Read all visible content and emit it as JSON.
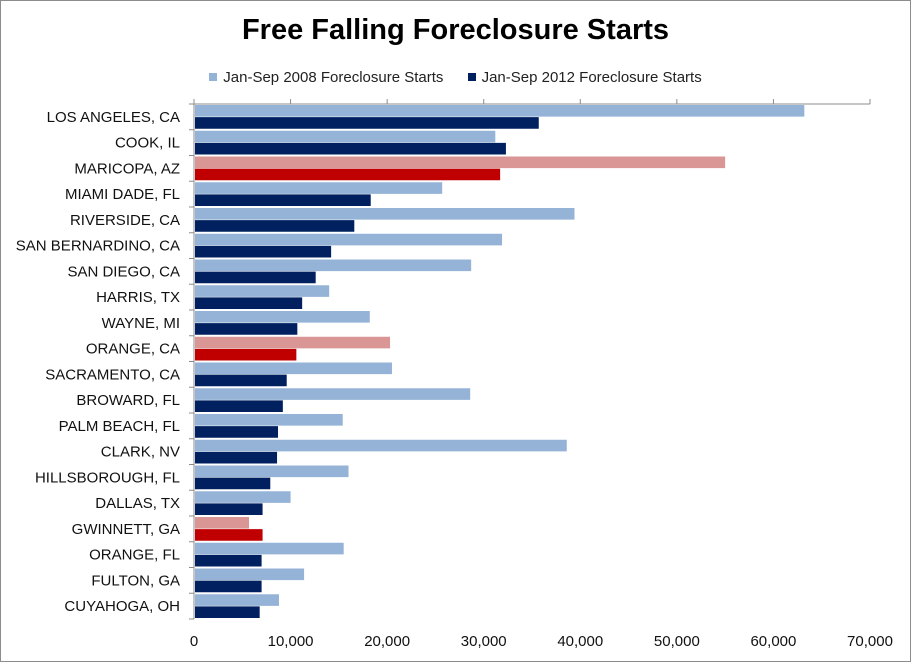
{
  "chart_data": {
    "type": "bar",
    "orientation": "horizontal",
    "title": "Free Falling Foreclosure Starts",
    "categories": [
      "LOS ANGELES, CA",
      "COOK, IL",
      "MARICOPA, AZ",
      "MIAMI DADE, FL",
      "RIVERSIDE, CA",
      "SAN BERNARDINO, CA",
      "SAN DIEGO, CA",
      "HARRIS, TX",
      "WAYNE, MI",
      "ORANGE, CA",
      "SACRAMENTO, CA",
      "BROWARD, FL",
      "PALM BEACH, FL",
      "CLARK, NV",
      "HILLSBOROUGH, FL",
      "DALLAS, TX",
      "GWINNETT, GA",
      "ORANGE, FL",
      "FULTON, GA",
      "CUYAHOGA, OH"
    ],
    "series": [
      {
        "name": "Jan-Sep 2008 Foreclosure Starts",
        "color": "#95b3d7",
        "highlight_color": "#d99694",
        "values": [
          63200,
          31200,
          55000,
          25700,
          39400,
          31900,
          28700,
          14000,
          18200,
          20300,
          20500,
          28600,
          15400,
          38600,
          16000,
          10000,
          5700,
          15500,
          11400,
          8800
        ]
      },
      {
        "name": "Jan-Sep 2012 Foreclosure Starts",
        "color": "#002060",
        "highlight_color": "#c00000",
        "values": [
          35700,
          32300,
          31700,
          18300,
          16600,
          14200,
          12600,
          11200,
          10700,
          10600,
          9600,
          9200,
          8700,
          8600,
          7900,
          7100,
          7100,
          7000,
          7000,
          6800
        ]
      }
    ],
    "highlighted_categories": [
      "MARICOPA, AZ",
      "ORANGE, CA",
      "GWINNETT, GA"
    ],
    "xlim": [
      0,
      70000
    ],
    "xticks": [
      "0",
      "10,000",
      "20,000",
      "30,000",
      "40,000",
      "50,000",
      "60,000",
      "70,000"
    ],
    "tick_values": [
      0,
      10000,
      20000,
      30000,
      40000,
      50000,
      60000,
      70000
    ],
    "grid": false,
    "legend_position": "top"
  }
}
